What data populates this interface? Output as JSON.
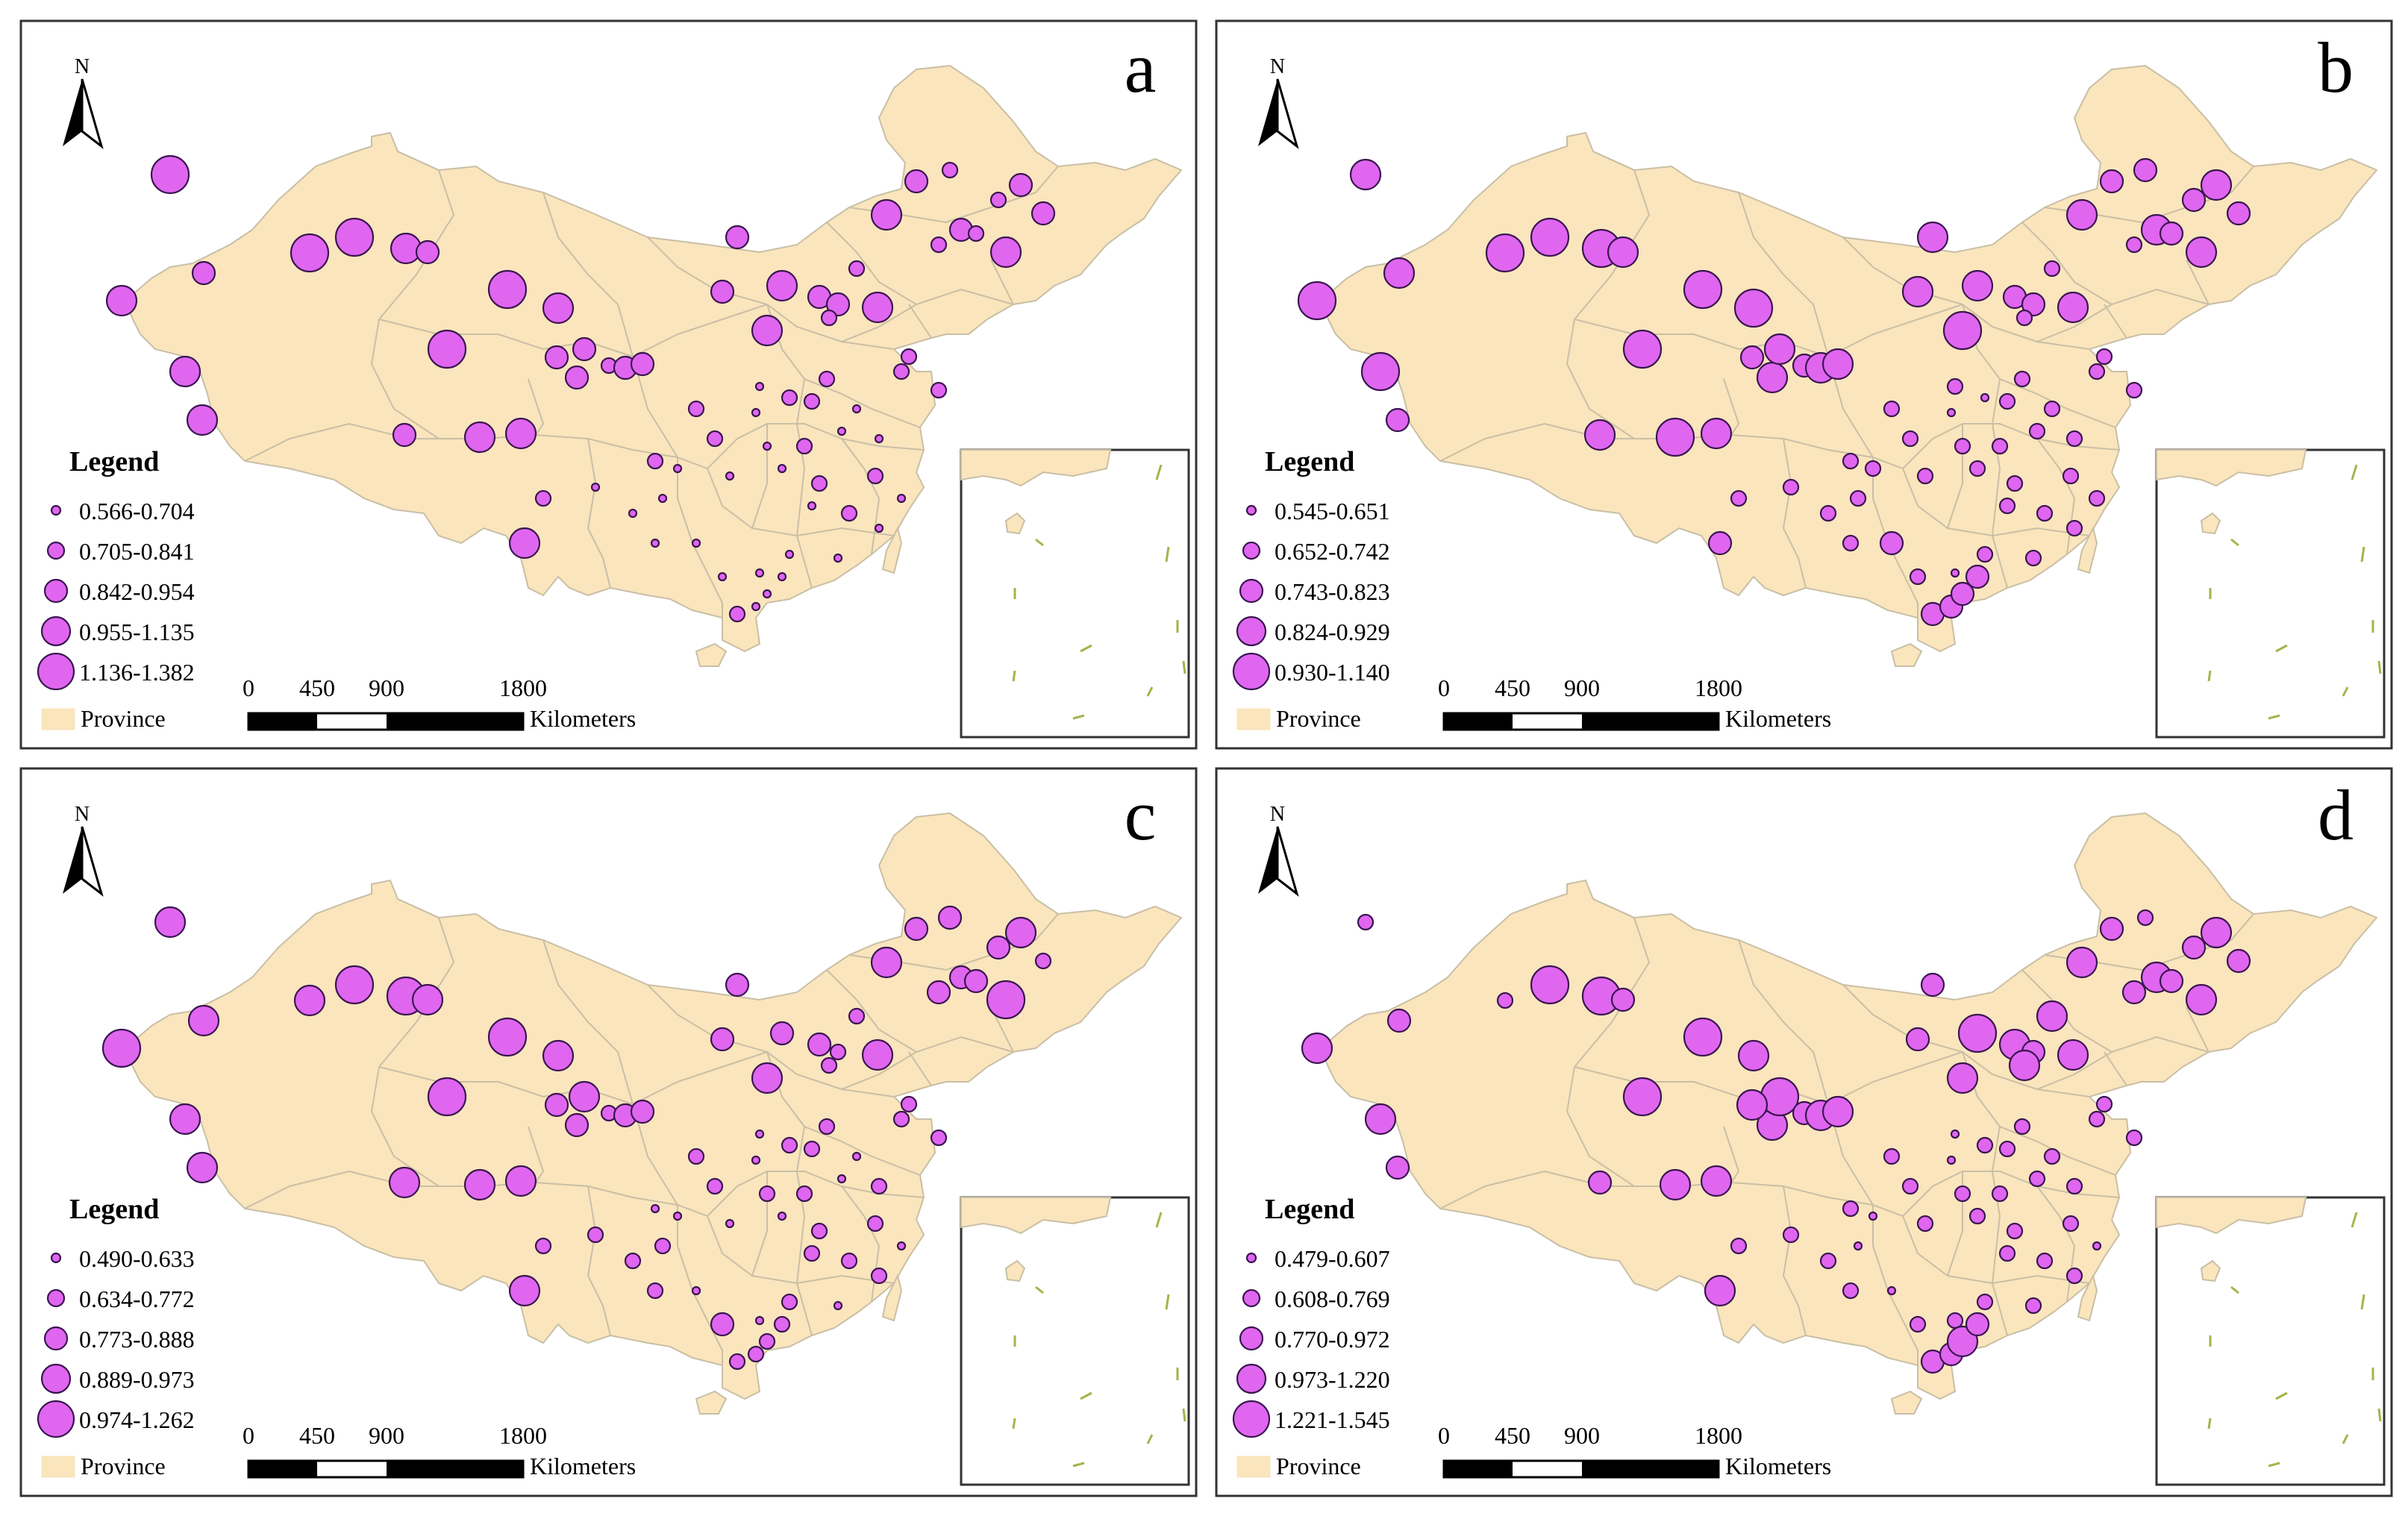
{
  "figure": {
    "panel_count": 4
  },
  "common": {
    "north_label": "N",
    "legend_title": "Legend",
    "province_label": "Province",
    "scale_ticks": [
      "0",
      "450",
      "900",
      "1800"
    ],
    "scale_unit": "Kilometers"
  },
  "colors": {
    "land": "#fae5bd",
    "border": "#c9bfa5",
    "bubble_fill": "#e066f0",
    "bubble_stroke": "#3a1550",
    "frame": "#333333",
    "island_dash": "#a3b44a"
  },
  "panels": [
    {
      "letter": "a",
      "classes": [
        "0.566-0.704",
        "0.705-0.841",
        "0.842-0.954",
        "0.955-1.135",
        "1.136-1.382"
      ]
    },
    {
      "letter": "b",
      "classes": [
        "0.545-0.651",
        "0.652-0.742",
        "0.743-0.823",
        "0.824-0.929",
        "0.930-1.140"
      ]
    },
    {
      "letter": "c",
      "classes": [
        "0.490-0.633",
        "0.634-0.772",
        "0.773-0.888",
        "0.889-0.973",
        "0.974-1.262"
      ]
    },
    {
      "letter": "d",
      "classes": [
        "0.479-0.607",
        "0.608-0.769",
        "0.770-0.972",
        "0.973-1.220",
        "1.221-1.545"
      ]
    }
  ]
}
